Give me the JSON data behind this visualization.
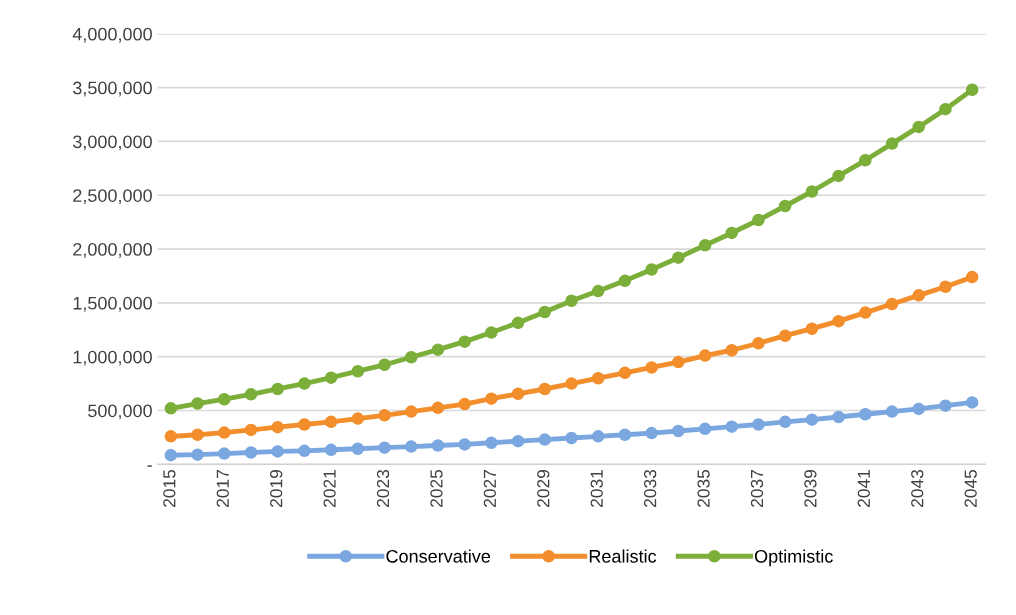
{
  "chart_data": {
    "type": "line",
    "categories": [
      "2015",
      null,
      "2017",
      null,
      "2019",
      null,
      "2021",
      null,
      "2023",
      null,
      "2025",
      null,
      "2027",
      null,
      "2029",
      null,
      "2031",
      null,
      "2033",
      null,
      "2035",
      null,
      "2037",
      null,
      "2039",
      null,
      "2041",
      null,
      "2043",
      null,
      "2045"
    ],
    "series": [
      {
        "name": "Conservative",
        "color": "#7ba7e0",
        "values": [
          85000,
          90000,
          100000,
          110000,
          120000,
          125000,
          135000,
          145000,
          155000,
          165000,
          175000,
          185000,
          200000,
          215000,
          230000,
          245000,
          260000,
          275000,
          290000,
          310000,
          330000,
          350000,
          370000,
          395000,
          415000,
          440000,
          465000,
          490000,
          515000,
          545000,
          575000
        ]
      },
      {
        "name": "Realistic",
        "color": "#f28e2b",
        "values": [
          260000,
          275000,
          295000,
          320000,
          345000,
          370000,
          395000,
          425000,
          455000,
          490000,
          525000,
          560000,
          610000,
          655000,
          700000,
          750000,
          800000,
          850000,
          900000,
          950000,
          1010000,
          1060000,
          1125000,
          1195000,
          1260000,
          1330000,
          1410000,
          1490000,
          1570000,
          1650000,
          1740000
        ]
      },
      {
        "name": "Optimistic",
        "color": "#7cae3a",
        "values": [
          520000,
          565000,
          605000,
          650000,
          700000,
          750000,
          805000,
          865000,
          925000,
          995000,
          1065000,
          1140000,
          1225000,
          1315000,
          1415000,
          1520000,
          1610000,
          1705000,
          1810000,
          1920000,
          2035000,
          2150000,
          2270000,
          2400000,
          2535000,
          2680000,
          2825000,
          2980000,
          3135000,
          3300000,
          3480000
        ]
      }
    ],
    "ylim": [
      0,
      4000000
    ],
    "yticks": [
      {
        "value": 0,
        "label": "-"
      },
      {
        "value": 500000,
        "label": "500,000"
      },
      {
        "value": 1000000,
        "label": "1,000,000"
      },
      {
        "value": 1500000,
        "label": "1,500,000"
      },
      {
        "value": 2000000,
        "label": "2,000,000"
      },
      {
        "value": 2500000,
        "label": "2,500,000"
      },
      {
        "value": 3000000,
        "label": "3,000,000"
      },
      {
        "value": 3500000,
        "label": "3,500,000"
      },
      {
        "value": 4000000,
        "label": "4,000,000"
      }
    ],
    "grid": "y",
    "legend": "bottom",
    "marker": "circle",
    "line_style": "solid"
  }
}
